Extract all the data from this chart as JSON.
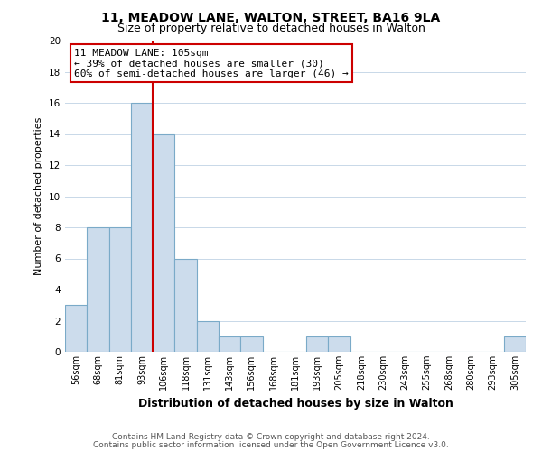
{
  "title_line1": "11, MEADOW LANE, WALTON, STREET, BA16 9LA",
  "title_line2": "Size of property relative to detached houses in Walton",
  "xlabel": "Distribution of detached houses by size in Walton",
  "ylabel": "Number of detached properties",
  "bar_labels": [
    "56sqm",
    "68sqm",
    "81sqm",
    "93sqm",
    "106sqm",
    "118sqm",
    "131sqm",
    "143sqm",
    "156sqm",
    "168sqm",
    "181sqm",
    "193sqm",
    "205sqm",
    "218sqm",
    "230sqm",
    "243sqm",
    "255sqm",
    "268sqm",
    "280sqm",
    "293sqm",
    "305sqm"
  ],
  "bar_values": [
    3,
    8,
    8,
    16,
    14,
    6,
    2,
    1,
    1,
    0,
    0,
    1,
    1,
    0,
    0,
    0,
    0,
    0,
    0,
    0,
    1
  ],
  "bar_color": "#ccdcec",
  "bar_edge_color": "#7aaac8",
  "marker_color": "#cc0000",
  "ylim": [
    0,
    20
  ],
  "yticks": [
    0,
    2,
    4,
    6,
    8,
    10,
    12,
    14,
    16,
    18,
    20
  ],
  "annotation_line1": "11 MEADOW LANE: 105sqm",
  "annotation_line2": "← 39% of detached houses are smaller (30)",
  "annotation_line3": "60% of semi-detached houses are larger (46) →",
  "footnote_line1": "Contains HM Land Registry data © Crown copyright and database right 2024.",
  "footnote_line2": "Contains public sector information licensed under the Open Government Licence v3.0.",
  "bg_color": "#ffffff",
  "grid_color": "#c8d8e8",
  "annotation_box_edge": "#cc0000",
  "title1_fontsize": 10,
  "title2_fontsize": 9,
  "ylabel_fontsize": 8,
  "xlabel_fontsize": 9,
  "tick_fontsize": 7,
  "annot_fontsize": 8,
  "footnote_fontsize": 6.5
}
